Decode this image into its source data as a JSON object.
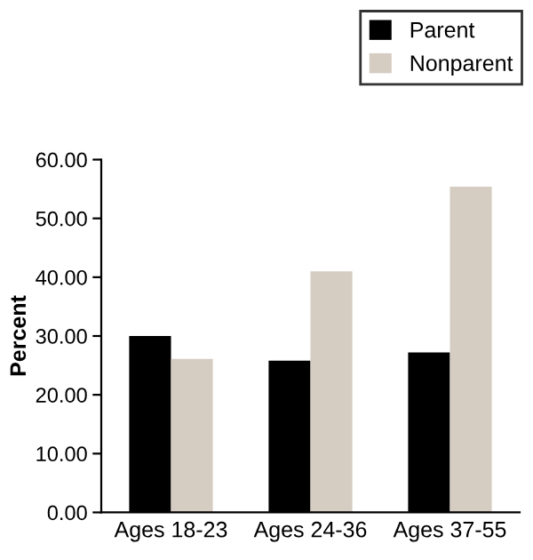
{
  "chart_data": {
    "type": "bar",
    "ylabel": "Percent",
    "categories": [
      "Ages 18-23",
      "Ages 24-36",
      "Ages 37-55"
    ],
    "series": [
      {
        "name": "Parent",
        "color": "#000000",
        "values": [
          30.0,
          25.8,
          27.2
        ]
      },
      {
        "name": "Nonparent",
        "color": "#d5ccc2",
        "values": [
          26.1,
          41.0,
          55.4
        ]
      }
    ],
    "ylim": [
      0,
      60
    ],
    "yticks": [
      {
        "value": 0,
        "label": "0.00"
      },
      {
        "value": 10,
        "label": "10.00"
      },
      {
        "value": 20,
        "label": "20.00"
      },
      {
        "value": 30,
        "label": "30.00"
      },
      {
        "value": 40,
        "label": "40.00"
      },
      {
        "value": 50,
        "label": "50.00"
      },
      {
        "value": 60,
        "label": "60.00"
      }
    ],
    "grid": false,
    "legend": "top right"
  }
}
